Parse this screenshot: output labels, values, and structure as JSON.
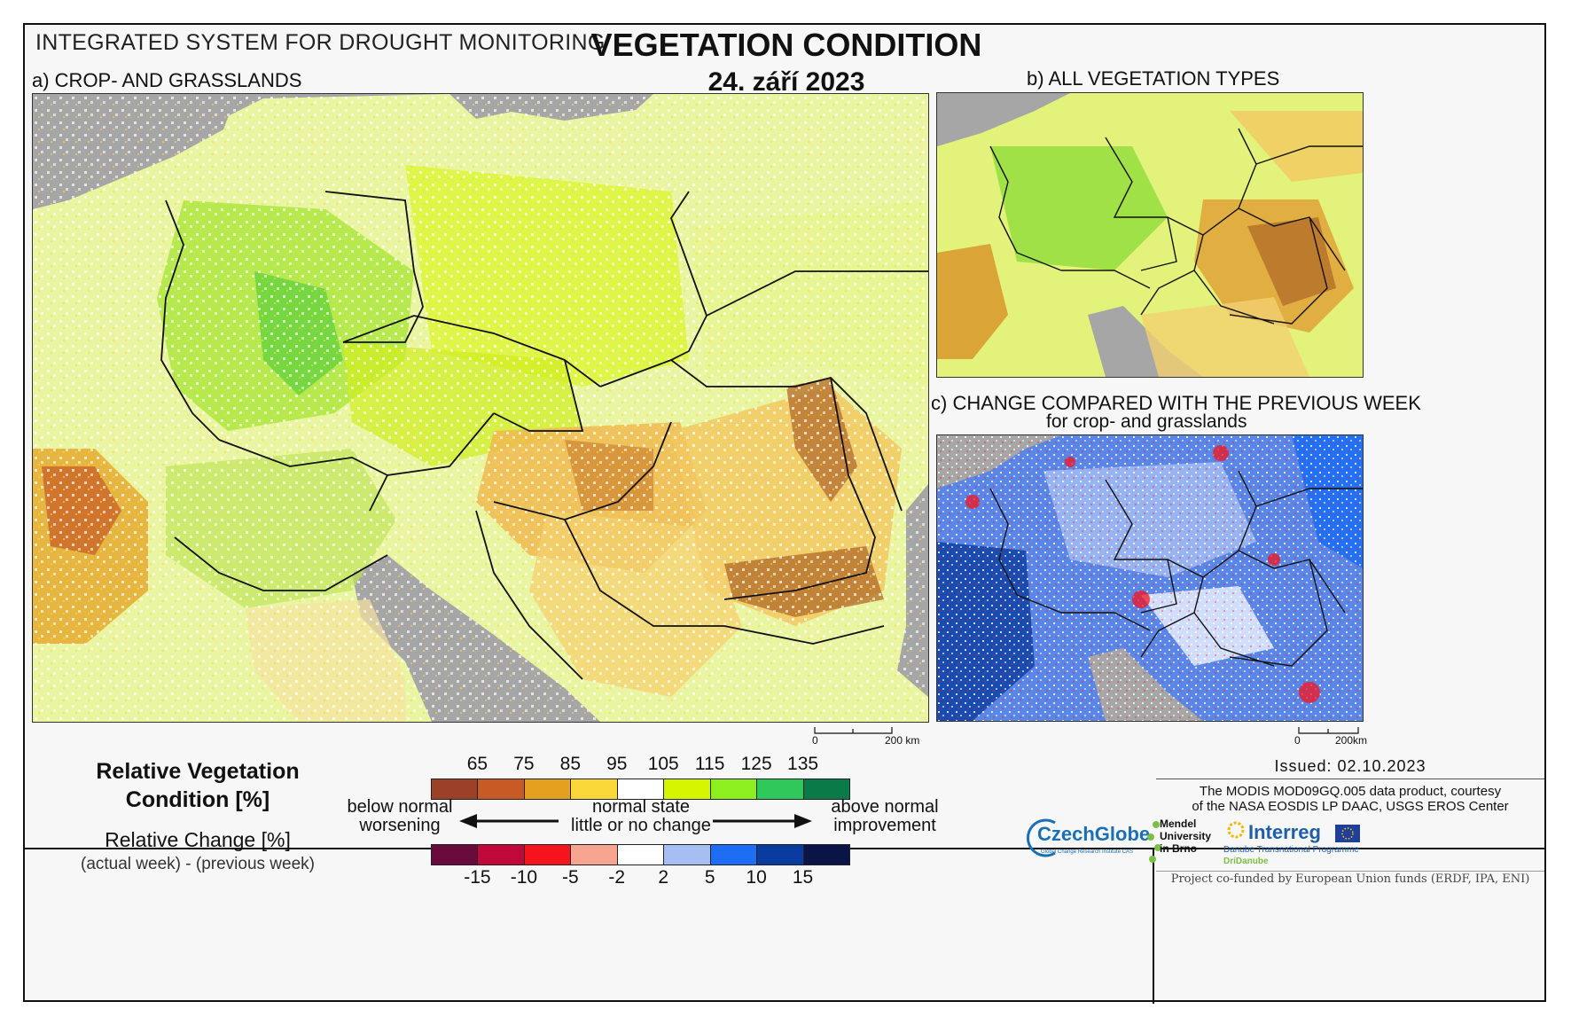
{
  "header": {
    "system": "INTEGRATED SYSTEM FOR DROUGHT MONITORING",
    "title": "VEGETATION CONDITION",
    "date": "24. září 2023"
  },
  "panels": {
    "a": "a) CROP- AND GRASSLANDS",
    "b": "b) ALL VEGETATION TYPES",
    "c": "c) CHANGE COMPARED WITH THE PREVIOUS WEEK",
    "c_sub": "for crop- and grasslands"
  },
  "scalebar": {
    "main_zero": "0",
    "main_end": "200 km",
    "small_zero": "0",
    "small_end": "200km"
  },
  "legend": {
    "rvc_title_1": "Relative Vegetation",
    "rvc_title_2": "Condition [%]",
    "rc_title": "Relative Change [%]",
    "rc_sub": "(actual week) - (previous week)",
    "left_1": "below normal",
    "left_2": "worsening",
    "mid_1": "normal state",
    "mid_2": "little or no change",
    "right_1": "above normal",
    "right_2": "improvement",
    "rvc_ticks": [
      "65",
      "75",
      "85",
      "95",
      "105",
      "115",
      "125",
      "135"
    ],
    "rvc_colors": [
      "#9a4128",
      "#c85a25",
      "#e6a020",
      "#fad83a",
      "#ffffff",
      "#d6f500",
      "#8cf01e",
      "#2fc85a",
      "#0a7a48"
    ],
    "rc_ticks": [
      "-15",
      "-10",
      "-5",
      "-2",
      "2",
      "5",
      "10",
      "15"
    ],
    "rc_colors": [
      "#6b0a3c",
      "#c0093a",
      "#f5141e",
      "#f7a590",
      "#ffffff",
      "#a6bef2",
      "#1e6ef5",
      "#0a3ca0",
      "#0a1446"
    ]
  },
  "issued": "Issued: 02.10.2023",
  "credits": {
    "line1": "The MODIS MOD09GQ.005 data product, courtesy",
    "line2": "of the NASA EOSDIS LP DAAC, USGS EROS Center",
    "czechglobe": "CzechGlobe",
    "czechglobe_sub": "Global Change Research Institute CAS",
    "mendel_1": "Mendel",
    "mendel_2": "University",
    "mendel_3": "in Brno",
    "interreg": "Interreg",
    "interreg_sub": "Danube Transnational Programme",
    "dridanube": "DriDanube",
    "funding": "Project co-funded by European Union funds (ERDF, IPA, ENI)"
  }
}
